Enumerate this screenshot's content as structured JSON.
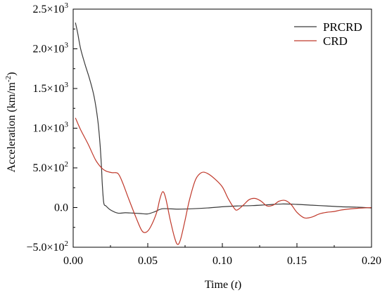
{
  "chart_data": {
    "type": "line",
    "title": "",
    "xlabel": {
      "main": "Time",
      "unit": "t"
    },
    "ylabel": {
      "main": "Acceleration",
      "unit": "km/m",
      "exp": "-2"
    },
    "xlim": [
      0.0,
      0.2
    ],
    "ylim": [
      -500,
      2500
    ],
    "x_ticks": [
      {
        "value": 0.0,
        "label": "0.00"
      },
      {
        "value": 0.05,
        "label": "0.05"
      },
      {
        "value": 0.1,
        "label": "0.10"
      },
      {
        "value": 0.15,
        "label": "0.15"
      },
      {
        "value": 0.2,
        "label": "0.20"
      }
    ],
    "y_ticks": [
      {
        "value": -500,
        "mant": "−5.0×10",
        "exp": "2"
      },
      {
        "value": 0,
        "mant": "0.0",
        "exp": ""
      },
      {
        "value": 500,
        "mant": "5.0×10",
        "exp": "2"
      },
      {
        "value": 1000,
        "mant": "1.0×10",
        "exp": "3"
      },
      {
        "value": 1500,
        "mant": "1.5×10",
        "exp": "3"
      },
      {
        "value": 2000,
        "mant": "2.0×10",
        "exp": "3"
      },
      {
        "value": 2500,
        "mant": "2.5×10",
        "exp": "3"
      }
    ],
    "grid": false,
    "legend_position": "top-right",
    "series": [
      {
        "name": "PRCRD",
        "color": "#3a3a3a",
        "points": [
          [
            0.0015,
            2330
          ],
          [
            0.003,
            2200
          ],
          [
            0.005,
            2000
          ],
          [
            0.008,
            1800
          ],
          [
            0.011,
            1620
          ],
          [
            0.014,
            1400
          ],
          [
            0.0165,
            1100
          ],
          [
            0.018,
            800
          ],
          [
            0.019,
            500
          ],
          [
            0.0195,
            300
          ],
          [
            0.0205,
            60
          ],
          [
            0.022,
            20
          ],
          [
            0.025,
            -30
          ],
          [
            0.03,
            -70
          ],
          [
            0.035,
            -65
          ],
          [
            0.04,
            -70
          ],
          [
            0.045,
            -75
          ],
          [
            0.05,
            -80
          ],
          [
            0.055,
            -50
          ],
          [
            0.06,
            -15
          ],
          [
            0.07,
            -20
          ],
          [
            0.08,
            -15
          ],
          [
            0.09,
            -5
          ],
          [
            0.1,
            10
          ],
          [
            0.11,
            20
          ],
          [
            0.12,
            25
          ],
          [
            0.13,
            35
          ],
          [
            0.14,
            45
          ],
          [
            0.15,
            40
          ],
          [
            0.16,
            30
          ],
          [
            0.17,
            20
          ],
          [
            0.18,
            10
          ],
          [
            0.19,
            5
          ],
          [
            0.2,
            -5
          ]
        ]
      },
      {
        "name": "CRD",
        "color": "#c0392b",
        "points": [
          [
            0.0015,
            1130
          ],
          [
            0.005,
            980
          ],
          [
            0.01,
            800
          ],
          [
            0.015,
            600
          ],
          [
            0.019,
            500
          ],
          [
            0.022,
            460
          ],
          [
            0.026,
            440
          ],
          [
            0.03,
            430
          ],
          [
            0.033,
            320
          ],
          [
            0.037,
            120
          ],
          [
            0.042,
            -120
          ],
          [
            0.046,
            -290
          ],
          [
            0.049,
            -310
          ],
          [
            0.052,
            -240
          ],
          [
            0.056,
            -60
          ],
          [
            0.058,
            100
          ],
          [
            0.06,
            200
          ],
          [
            0.062,
            120
          ],
          [
            0.065,
            -150
          ],
          [
            0.068,
            -380
          ],
          [
            0.07,
            -465
          ],
          [
            0.072,
            -400
          ],
          [
            0.075,
            -160
          ],
          [
            0.078,
            100
          ],
          [
            0.082,
            350
          ],
          [
            0.086,
            440
          ],
          [
            0.09,
            430
          ],
          [
            0.095,
            360
          ],
          [
            0.1,
            260
          ],
          [
            0.104,
            110
          ],
          [
            0.108,
            -10
          ],
          [
            0.11,
            -30
          ],
          [
            0.114,
            30
          ],
          [
            0.118,
            100
          ],
          [
            0.122,
            115
          ],
          [
            0.126,
            80
          ],
          [
            0.13,
            20
          ],
          [
            0.134,
            30
          ],
          [
            0.138,
            80
          ],
          [
            0.142,
            90
          ],
          [
            0.146,
            40
          ],
          [
            0.15,
            -60
          ],
          [
            0.155,
            -130
          ],
          [
            0.16,
            -120
          ],
          [
            0.165,
            -80
          ],
          [
            0.17,
            -60
          ],
          [
            0.175,
            -50
          ],
          [
            0.18,
            -30
          ],
          [
            0.19,
            -10
          ],
          [
            0.2,
            0
          ]
        ]
      }
    ]
  }
}
